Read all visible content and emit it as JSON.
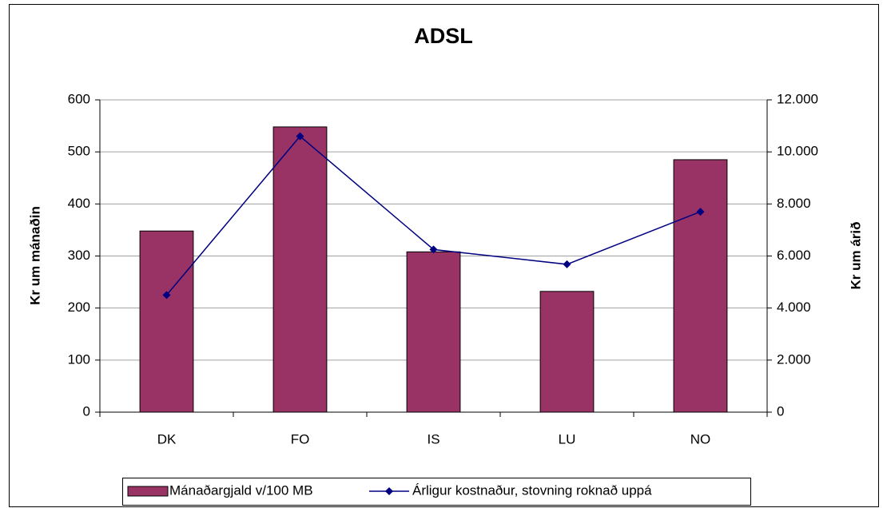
{
  "chart_data": {
    "type": "bar_line",
    "title": "ADSL",
    "categories": [
      "DK",
      "FO",
      "IS",
      "LU",
      "NO"
    ],
    "series": [
      {
        "name": "Mánaðargjald v/100 MB",
        "color": "#993366",
        "values": [
          348,
          548,
          308,
          232,
          485
        ]
      },
      {
        "name": "Árligur kostnaður, stovning roknað uppá",
        "color": "#000080",
        "values": [
          4500,
          10600,
          6250,
          5680,
          7700
        ],
        "axis": "y2"
      }
    ],
    "ylabel": "Kr um mánaðin",
    "y2label": "Kr um árið",
    "ylim": [
      0,
      600
    ],
    "yticks": [
      0,
      100,
      200,
      300,
      400,
      500,
      600
    ],
    "y2lim": [
      0,
      12000
    ],
    "y2ticks": [
      0,
      {
        "value": 2000,
        "label": "2.000"
      },
      {
        "value": 4000,
        "label": "4.000"
      },
      {
        "value": 6000,
        "label": "6.000"
      },
      {
        "value": 8000,
        "label": "8.000"
      },
      {
        "value": 10000,
        "label": "10.000"
      },
      {
        "value": 12000,
        "label": "12.000"
      }
    ],
    "grid": true,
    "legend": "bottom"
  }
}
